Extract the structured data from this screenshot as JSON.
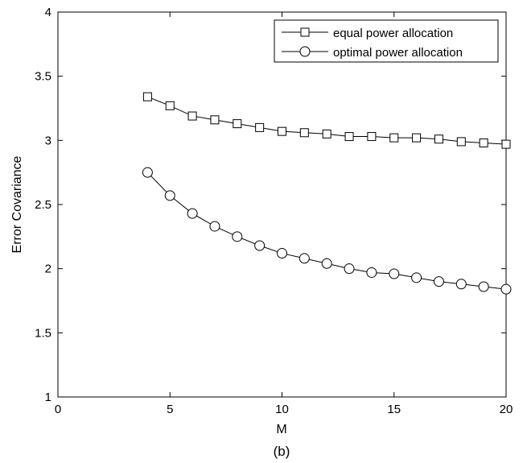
{
  "chart_data": {
    "type": "line",
    "title": "",
    "xlabel": "M",
    "ylabel": "Error Covariance",
    "caption": "(b)",
    "xlim": [
      0,
      20
    ],
    "ylim": [
      1,
      4
    ],
    "xticks": [
      0,
      5,
      10,
      15,
      20
    ],
    "yticks": [
      1,
      1.5,
      2,
      2.5,
      3,
      3.5,
      4
    ],
    "xtick_labels": [
      "0",
      "5",
      "10",
      "15",
      "20"
    ],
    "ytick_labels": [
      "1",
      "1.5",
      "2",
      "2.5",
      "3",
      "3.5",
      "4"
    ],
    "grid": false,
    "legend_position": "top-right",
    "x": [
      4,
      5,
      6,
      7,
      8,
      9,
      10,
      11,
      12,
      13,
      14,
      15,
      16,
      17,
      18,
      19,
      20
    ],
    "series": [
      {
        "name": "equal power allocation",
        "marker": "square",
        "values": [
          3.34,
          3.27,
          3.19,
          3.16,
          3.13,
          3.1,
          3.07,
          3.06,
          3.05,
          3.03,
          3.03,
          3.02,
          3.02,
          3.01,
          2.99,
          2.98,
          2.97
        ]
      },
      {
        "name": "optimal power allocation",
        "marker": "circle",
        "values": [
          2.75,
          2.57,
          2.43,
          2.33,
          2.25,
          2.18,
          2.12,
          2.08,
          2.04,
          2.0,
          1.97,
          1.96,
          1.93,
          1.9,
          1.88,
          1.86,
          1.84
        ]
      }
    ]
  }
}
